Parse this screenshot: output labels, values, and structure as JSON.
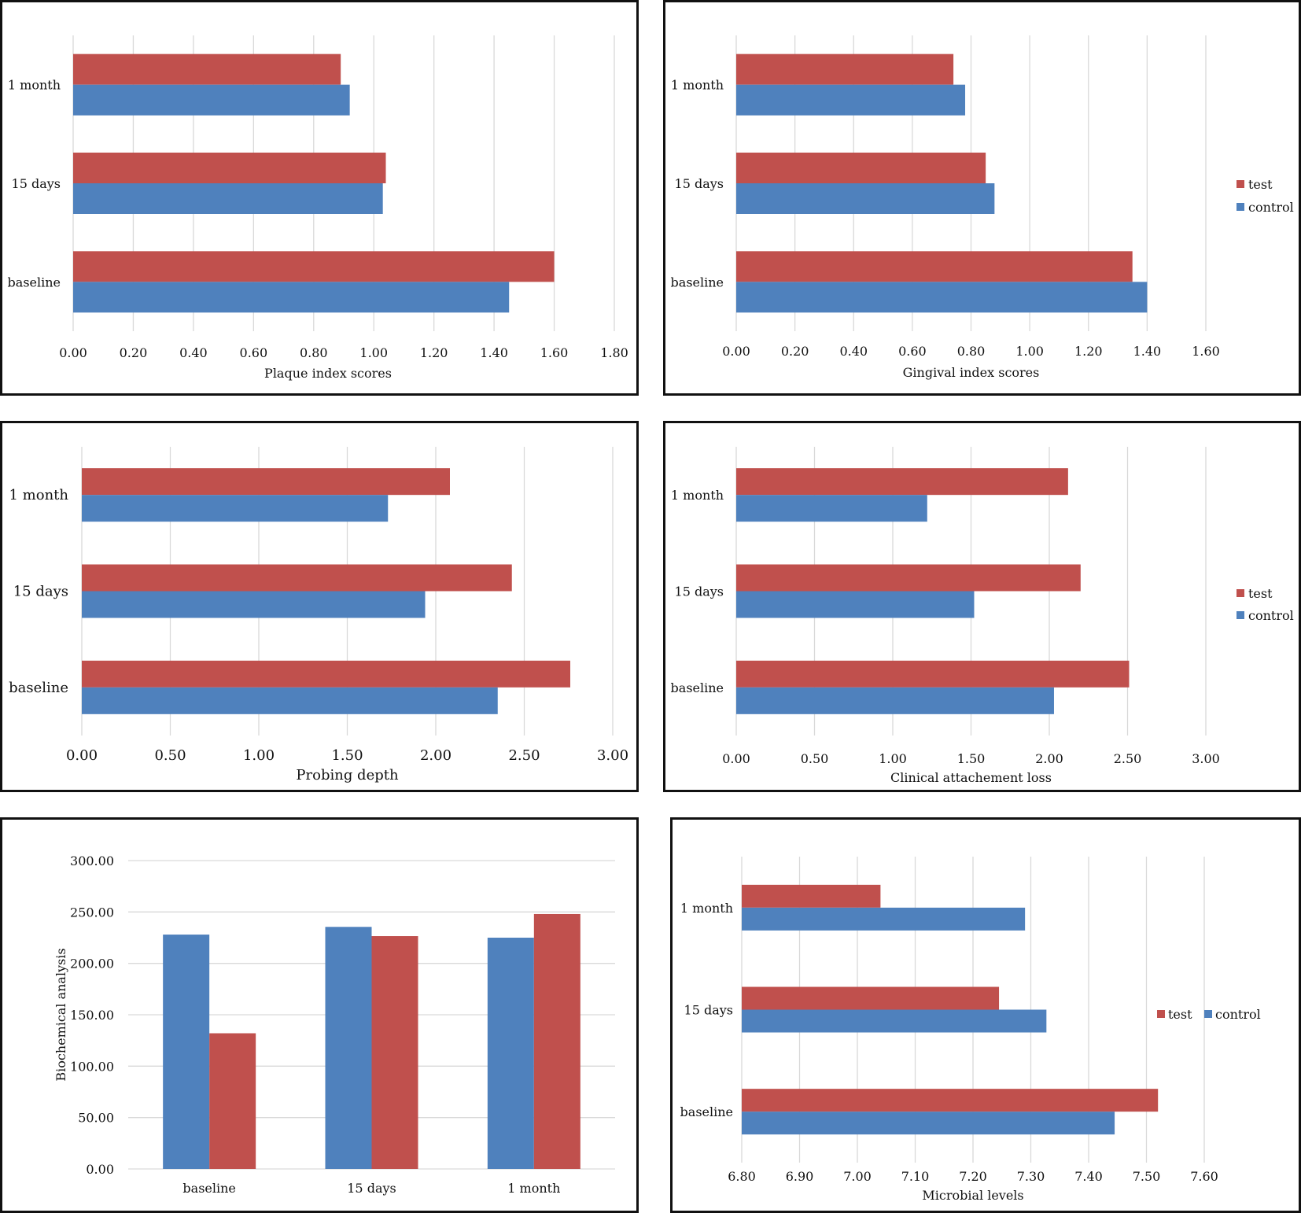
{
  "colors": {
    "test": "#C0504D",
    "control": "#4F81BD",
    "grid": "#D9D9D9"
  },
  "chart_data": [
    {
      "id": "plaque",
      "type": "bar",
      "orientation": "horizontal",
      "categories": [
        "1 month",
        "15 days",
        "baseline"
      ],
      "series": [
        {
          "name": "test",
          "values": [
            0.89,
            1.04,
            1.6
          ]
        },
        {
          "name": "control",
          "values": [
            0.92,
            1.03,
            1.45
          ]
        }
      ],
      "title": "",
      "xlabel": "Plaque index scores",
      "ylabel": "",
      "xlim": [
        0,
        1.8
      ],
      "ticks": [
        "0.00",
        "0.20",
        "0.40",
        "0.60",
        "0.80",
        "1.00",
        "1.20",
        "1.40",
        "1.60",
        "1.80"
      ],
      "grid": true,
      "legend": "none"
    },
    {
      "id": "gingival",
      "type": "bar",
      "orientation": "horizontal",
      "categories": [
        "1 month",
        "15 days",
        "baseline"
      ],
      "series": [
        {
          "name": "test",
          "values": [
            0.74,
            0.85,
            1.35
          ]
        },
        {
          "name": "control",
          "values": [
            0.78,
            0.88,
            1.4
          ]
        }
      ],
      "title": "",
      "xlabel": "Gingival index scores",
      "ylabel": "",
      "xlim": [
        0,
        1.6
      ],
      "ticks": [
        "0.00",
        "0.20",
        "0.40",
        "0.60",
        "0.80",
        "1.00",
        "1.20",
        "1.40",
        "1.60"
      ],
      "grid": true,
      "legend": "right",
      "legend_entries": [
        "test",
        "control"
      ]
    },
    {
      "id": "probing",
      "type": "bar",
      "orientation": "horizontal",
      "categories": [
        "1 month",
        "15 days",
        "baseline"
      ],
      "series": [
        {
          "name": "test",
          "values": [
            2.08,
            2.43,
            2.76
          ]
        },
        {
          "name": "control",
          "values": [
            1.73,
            1.94,
            2.35
          ]
        }
      ],
      "title": "",
      "xlabel": "Probing depth",
      "ylabel": "",
      "xlim": [
        0,
        3.0
      ],
      "ticks": [
        "0.00",
        "0.50",
        "1.00",
        "1.50",
        "2.00",
        "2.50",
        "3.00"
      ],
      "grid": true,
      "legend": "none"
    },
    {
      "id": "cal",
      "type": "bar",
      "orientation": "horizontal",
      "categories": [
        "1 month",
        "15 days",
        "baseline"
      ],
      "series": [
        {
          "name": "test",
          "values": [
            2.12,
            2.2,
            2.51
          ]
        },
        {
          "name": "control",
          "values": [
            1.22,
            1.52,
            2.03
          ]
        }
      ],
      "title": "",
      "xlabel": "Clinical attachement loss",
      "ylabel": "",
      "xlim": [
        0,
        3.0
      ],
      "ticks": [
        "0.00",
        "0.50",
        "1.00",
        "1.50",
        "2.00",
        "2.50",
        "3.00"
      ],
      "grid": true,
      "legend": "right",
      "legend_entries": [
        "test",
        "control"
      ]
    },
    {
      "id": "biochemical",
      "type": "bar",
      "orientation": "vertical",
      "categories": [
        "baseline",
        "15 days",
        "1 month"
      ],
      "series": [
        {
          "name": "control",
          "values": [
            228,
            235.5,
            225
          ]
        },
        {
          "name": "test",
          "values": [
            132,
            226.5,
            248
          ]
        }
      ],
      "title": "",
      "xlabel": "",
      "ylabel": "Biochemical analysis",
      "ylim": [
        0,
        300
      ],
      "ticks": [
        "0.00",
        "50.00",
        "100.00",
        "150.00",
        "200.00",
        "250.00",
        "300.00"
      ],
      "grid": true,
      "legend": "none"
    },
    {
      "id": "microbial",
      "type": "bar",
      "orientation": "horizontal",
      "categories": [
        "1 month",
        "15 days",
        "baseline"
      ],
      "series": [
        {
          "name": "test",
          "values": [
            7.04,
            7.245,
            7.52
          ]
        },
        {
          "name": "control",
          "values": [
            7.29,
            7.327,
            7.445
          ]
        }
      ],
      "title": "",
      "xlabel": "Microbial levels",
      "ylabel": "",
      "xlim": [
        6.8,
        7.6
      ],
      "ticks": [
        "6.80",
        "6.90",
        "7.00",
        "7.10",
        "7.20",
        "7.30",
        "7.40",
        "7.50",
        "7.60"
      ],
      "grid": true,
      "legend": "right-inline",
      "legend_entries": [
        "test",
        "control"
      ]
    }
  ]
}
